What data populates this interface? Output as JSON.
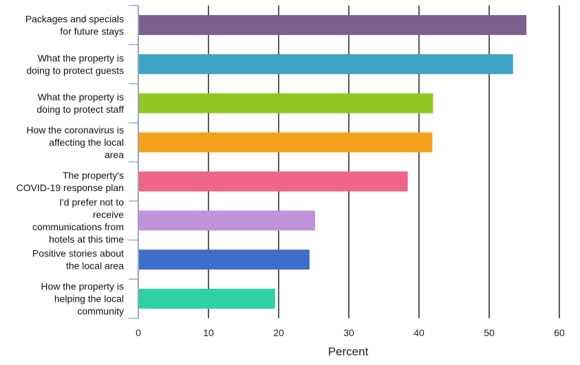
{
  "chart_data": {
    "type": "bar",
    "orientation": "horizontal",
    "categories": [
      [
        "Packages and specials",
        "for future stays"
      ],
      [
        "What the property is",
        "doing to protect guests"
      ],
      [
        "What the property is",
        "doing to protect staff"
      ],
      [
        "How the coronavirus is",
        "affecting the local",
        "area"
      ],
      [
        "The property's",
        "COVID-19 response plan"
      ],
      [
        "I'd prefer not to",
        "receive",
        "communications from",
        "hotels at this time"
      ],
      [
        "Positive stories about",
        "the local area"
      ],
      [
        "How the property is",
        "helping the local",
        "community"
      ]
    ],
    "values": [
      55.3,
      53.4,
      42.0,
      41.9,
      38.4,
      25.2,
      24.4,
      19.5
    ],
    "colors": [
      "#7b5f8f",
      "#3ea3c4",
      "#91c824",
      "#f5a11c",
      "#f06487",
      "#bf94db",
      "#3e6dcb",
      "#2ed1a2"
    ],
    "xlabel": "Percent",
    "ylabel": "",
    "title": "",
    "xlim": [
      0,
      60
    ],
    "xticks": [
      0,
      10,
      20,
      30,
      40,
      50,
      60
    ],
    "grid": "vertical",
    "legend": "none"
  }
}
